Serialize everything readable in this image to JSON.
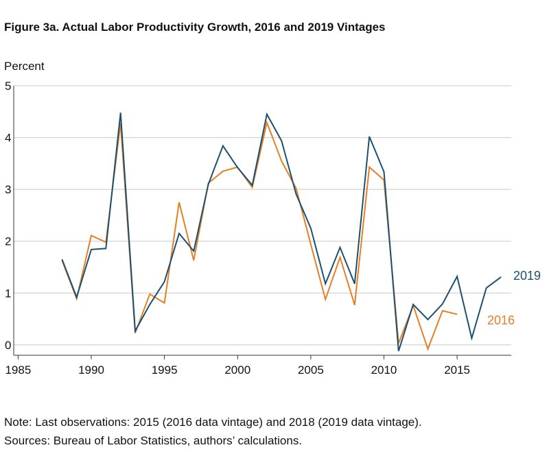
{
  "title": "Figure 3a. Actual Labor Productivity Growth, 2016 and 2019 Vintages",
  "ylabel": "Percent",
  "notes": [
    "Note: Last observations: 2015 (2016 data vintage) and 2018 (2019 data vintage).",
    "Sources: Bureau of Labor Statistics, authors’ calculations."
  ],
  "colors": {
    "v2019": "#1b4f72",
    "v2016": "#e67e22",
    "grid": "#c8c8c8",
    "axis": "#333333"
  },
  "chart_data": {
    "type": "line",
    "title": "Figure 3a. Actual Labor Productivity Growth, 2016 and 2019 Vintages",
    "xlabel": "",
    "ylabel": "Percent",
    "xlim": [
      1984.7,
      2018.7
    ],
    "ylim": [
      -0.2,
      5
    ],
    "xticks": [
      1985,
      1990,
      1995,
      2000,
      2005,
      2010,
      2015
    ],
    "yticks": [
      0,
      1,
      2,
      3,
      4,
      5
    ],
    "grid": true,
    "series": [
      {
        "name": "2019",
        "color": "#1b4f72",
        "x": [
          1988,
          1989,
          1990,
          1991,
          1992,
          1993,
          1994,
          1995,
          1996,
          1997,
          1998,
          1999,
          2000,
          2001,
          2002,
          2003,
          2004,
          2005,
          2006,
          2007,
          2008,
          2009,
          2010,
          2011,
          2012,
          2013,
          2014,
          2015,
          2016,
          2017,
          2018
        ],
        "y": [
          1.65,
          0.92,
          1.84,
          1.86,
          4.48,
          0.27,
          0.78,
          1.22,
          2.15,
          1.81,
          3.1,
          3.84,
          3.42,
          3.08,
          4.45,
          3.94,
          2.91,
          2.25,
          1.18,
          1.88,
          1.18,
          4.02,
          3.34,
          -0.12,
          0.78,
          0.49,
          0.79,
          1.32,
          0.13,
          1.1,
          1.31
        ]
      },
      {
        "name": "2016",
        "color": "#e67e22",
        "x": [
          1988,
          1989,
          1990,
          1991,
          1992,
          1993,
          1994,
          1995,
          1996,
          1997,
          1998,
          1999,
          2000,
          2001,
          2002,
          2003,
          2004,
          2005,
          2006,
          2007,
          2008,
          2009,
          2010,
          2011,
          2012,
          2013,
          2014,
          2015
        ],
        "y": [
          1.63,
          0.89,
          2.11,
          1.98,
          4.28,
          0.23,
          0.98,
          0.81,
          2.75,
          1.63,
          3.12,
          3.35,
          3.43,
          3.04,
          4.29,
          3.55,
          3.02,
          1.94,
          0.88,
          1.69,
          0.77,
          3.43,
          3.18,
          0.03,
          0.76,
          -0.08,
          0.66,
          0.59
        ]
      }
    ]
  }
}
